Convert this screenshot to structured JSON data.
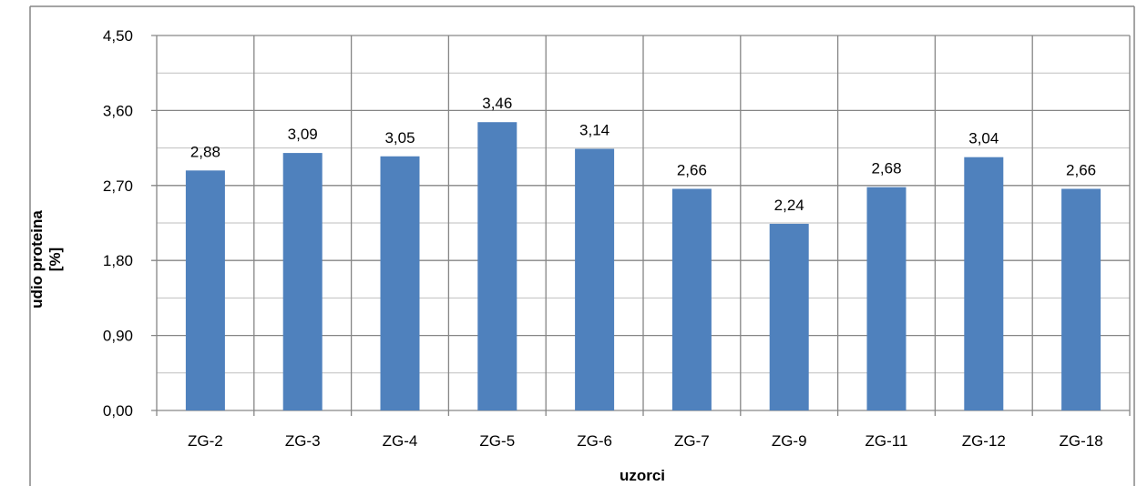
{
  "chart_data": {
    "type": "bar",
    "categories": [
      "ZG-2",
      "ZG-3",
      "ZG-4",
      "ZG-5",
      "ZG-6",
      "ZG-7",
      "ZG-9",
      "ZG-11",
      "ZG-12",
      "ZG-18"
    ],
    "values": [
      2.88,
      3.09,
      3.05,
      3.46,
      3.14,
      2.66,
      2.24,
      2.68,
      3.04,
      2.66
    ],
    "value_labels": [
      "2,88",
      "3,09",
      "3,05",
      "3,46",
      "3,14",
      "2,66",
      "2,24",
      "2,68",
      "3,04",
      "2,66"
    ],
    "y_ticks": [
      0,
      0.9,
      1.8,
      2.7,
      3.6,
      4.5
    ],
    "y_tick_labels": [
      "0,00",
      "0,90",
      "1,80",
      "2,70",
      "3,60",
      "4,50"
    ],
    "ylim": [
      0,
      4.5
    ],
    "xlabel": "uzorci",
    "ylabel_lines": [
      "udio proteina",
      "[%]"
    ],
    "grid": true,
    "bar_color": "#4f81bd",
    "grid_color": "#868686",
    "legend": "none"
  }
}
